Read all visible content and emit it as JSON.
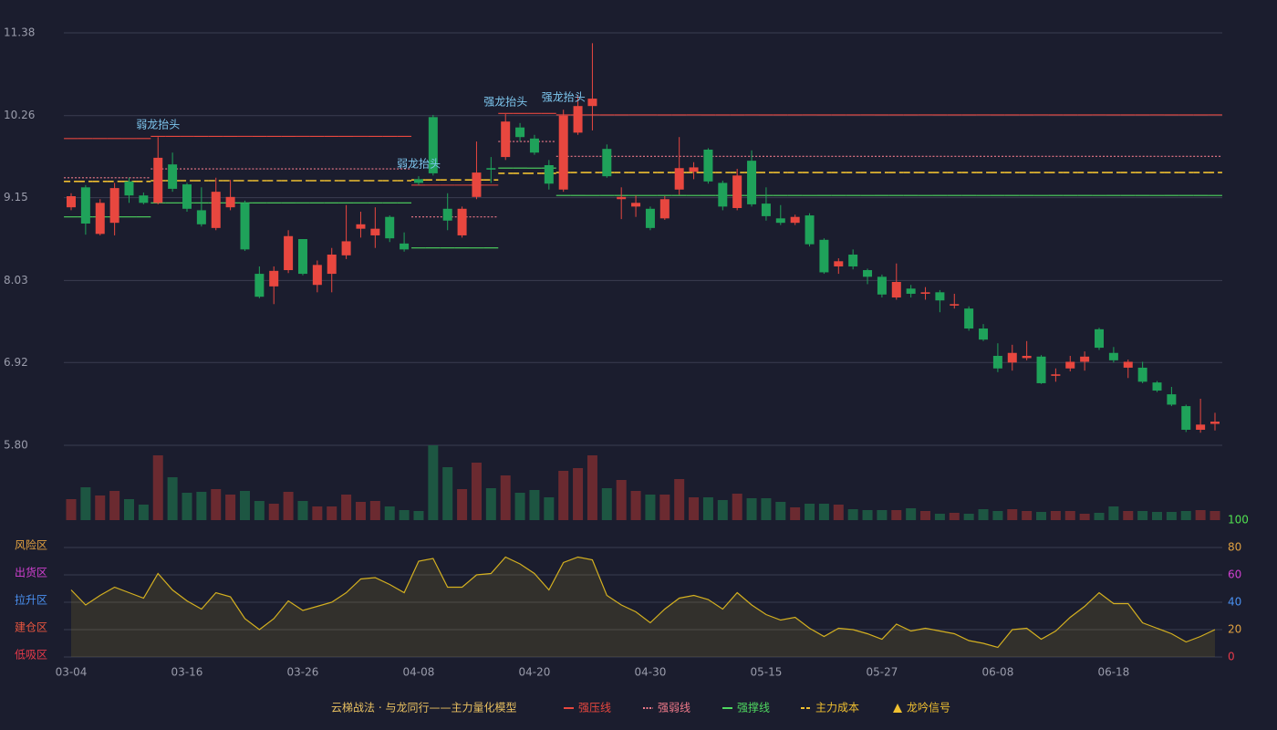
{
  "chart_data": {
    "type": "candlestick",
    "categories": [
      "03-04",
      null,
      null,
      null,
      null,
      null,
      null,
      null,
      "03-16",
      null,
      null,
      null,
      null,
      null,
      null,
      null,
      "03-26",
      null,
      null,
      null,
      null,
      null,
      null,
      null,
      "04-08",
      null,
      null,
      null,
      null,
      null,
      null,
      null,
      "04-20",
      null,
      null,
      null,
      null,
      null,
      null,
      null,
      "04-30",
      null,
      null,
      null,
      null,
      null,
      null,
      null,
      "05-15",
      null,
      null,
      null,
      null,
      null,
      null,
      null,
      "05-27",
      null,
      null,
      null,
      null,
      null,
      null,
      null,
      "06-08",
      null,
      null,
      null,
      null,
      null,
      null,
      null,
      "06-18",
      null,
      null,
      null,
      null,
      null,
      null,
      null
    ],
    "open": [
      9.02,
      9.29,
      8.66,
      8.81,
      9.37,
      9.18,
      9.08,
      9.6,
      9.33,
      8.98,
      8.74,
      9.02,
      9.08,
      8.12,
      7.95,
      8.17,
      8.59,
      7.97,
      8.12,
      8.37,
      8.73,
      8.64,
      8.89,
      8.53,
      9.4,
      10.24,
      9.0,
      8.64,
      9.16,
      9.55,
      9.7,
      10.1,
      9.95,
      9.59,
      9.26,
      10.03,
      10.39,
      9.81,
      9.13,
      9.03,
      9.0,
      8.87,
      9.26,
      9.5,
      9.8,
      9.35,
      9.01,
      9.65,
      9.07,
      8.87,
      8.81,
      8.91,
      8.58,
      8.22,
      8.38,
      8.17,
      8.08,
      7.8,
      7.92,
      7.85,
      7.87,
      7.69,
      7.65,
      7.38,
      7.01,
      6.92,
      6.98,
      7.0,
      6.74,
      6.84,
      6.93,
      7.37,
      7.05,
      6.85,
      6.85,
      6.65,
      6.49,
      6.33,
      6.01,
      6.09
    ],
    "close": [
      9.17,
      8.8,
      9.08,
      9.28,
      9.18,
      9.08,
      9.69,
      9.27,
      9.0,
      8.79,
      9.23,
      9.16,
      8.45,
      7.81,
      8.16,
      8.63,
      8.12,
      8.24,
      8.38,
      8.56,
      8.79,
      8.73,
      8.6,
      8.45,
      9.35,
      9.48,
      8.84,
      9.0,
      9.49,
      9.53,
      10.18,
      9.97,
      9.76,
      9.34,
      10.26,
      10.39,
      10.49,
      9.44,
      9.16,
      9.08,
      8.74,
      9.13,
      9.55,
      9.56,
      9.37,
      9.03,
      9.45,
      9.06,
      8.9,
      8.81,
      8.89,
      8.52,
      8.14,
      8.29,
      8.22,
      8.08,
      7.84,
      8.01,
      7.85,
      7.87,
      7.76,
      7.71,
      7.38,
      7.23,
      6.84,
      7.05,
      7.01,
      6.64,
      6.76,
      6.93,
      7.0,
      7.12,
      6.95,
      6.93,
      6.66,
      6.54,
      6.35,
      6.01,
      6.08,
      6.12
    ],
    "high": [
      9.21,
      9.32,
      9.13,
      9.35,
      9.42,
      9.22,
      9.97,
      9.76,
      9.35,
      9.29,
      9.42,
      9.39,
      9.11,
      8.22,
      8.22,
      8.71,
      8.59,
      8.3,
      8.47,
      9.05,
      8.96,
      9.02,
      8.91,
      8.68,
      9.44,
      10.27,
      9.21,
      9.03,
      9.91,
      9.7,
      10.28,
      10.16,
      10.0,
      9.66,
      10.34,
      10.54,
      11.24,
      9.87,
      9.29,
      9.18,
      9.03,
      9.17,
      9.97,
      9.63,
      9.82,
      9.38,
      9.54,
      9.79,
      9.29,
      9.05,
      8.92,
      8.94,
      8.6,
      8.33,
      8.45,
      8.19,
      8.11,
      8.26,
      7.97,
      7.94,
      7.9,
      7.85,
      7.68,
      7.44,
      7.18,
      7.16,
      7.21,
      7.02,
      6.84,
      7.01,
      7.07,
      7.39,
      7.13,
      6.96,
      6.93,
      6.67,
      6.59,
      6.35,
      6.43,
      6.24
    ],
    "low": [
      8.98,
      8.65,
      8.64,
      8.64,
      9.08,
      9.06,
      9.06,
      9.23,
      8.96,
      8.76,
      8.71,
      8.98,
      8.43,
      7.79,
      7.71,
      8.13,
      8.1,
      7.87,
      7.87,
      8.32,
      8.61,
      8.47,
      8.55,
      8.42,
      9.32,
      9.45,
      8.71,
      8.61,
      9.13,
      9.35,
      9.66,
      9.91,
      9.73,
      9.26,
      9.23,
      10.0,
      10.06,
      9.42,
      8.86,
      8.89,
      8.71,
      8.85,
      9.19,
      9.4,
      9.34,
      8.98,
      8.98,
      9.03,
      8.84,
      8.78,
      8.78,
      8.49,
      8.12,
      8.12,
      8.18,
      7.98,
      7.8,
      7.77,
      7.8,
      7.77,
      7.6,
      7.65,
      7.35,
      7.21,
      6.79,
      6.81,
      6.95,
      6.63,
      6.66,
      6.8,
      6.81,
      7.09,
      6.92,
      6.71,
      6.64,
      6.52,
      6.33,
      5.98,
      5.97,
      6.0
    ],
    "up_color": "#e8473f",
    "down_color": "#1fa25a",
    "vol_up_color": "#6b2a30",
    "vol_down_color": "#1d5642",
    "ylim": [
      5.8,
      11.38
    ],
    "yticks": [
      {
        "value": 5.8,
        "label": "5.80"
      },
      6.92,
      8.03,
      9.15,
      10.26,
      11.38
    ],
    "grid": true,
    "series": [
      {
        "name": "强压线",
        "color": "#e8473f",
        "style": "solid",
        "values": [
          9.95,
          9.95,
          9.95,
          9.95,
          9.95,
          9.95,
          9.98,
          9.98,
          9.98,
          9.98,
          9.98,
          9.98,
          9.98,
          9.98,
          9.98,
          9.98,
          9.98,
          9.98,
          9.98,
          9.98,
          9.98,
          9.98,
          9.98,
          9.98,
          9.32,
          9.32,
          9.32,
          9.32,
          9.32,
          9.32,
          10.29,
          10.29,
          10.29,
          10.29,
          10.27,
          10.27,
          10.27,
          10.27,
          10.27,
          10.27,
          10.27,
          10.27,
          10.27,
          10.27,
          10.27,
          10.27,
          10.27,
          10.27,
          10.27,
          10.27,
          10.27,
          10.27,
          10.27,
          10.27,
          10.27,
          10.27,
          10.27,
          10.27,
          10.27,
          10.27,
          10.27,
          10.27,
          10.27,
          10.27,
          10.27,
          10.27,
          10.27,
          10.27,
          10.27,
          10.27,
          10.27,
          10.27,
          10.27,
          10.27,
          10.27,
          10.27,
          10.27,
          10.27,
          10.27,
          10.27
        ]
      },
      {
        "name": "强弱线",
        "color": "#f07a8a",
        "style": "dotted",
        "values": [
          9.42,
          9.42,
          9.42,
          9.42,
          9.42,
          9.42,
          9.54,
          9.54,
          9.54,
          9.54,
          9.54,
          9.54,
          9.54,
          9.54,
          9.54,
          9.54,
          9.54,
          9.54,
          9.54,
          9.54,
          9.54,
          9.54,
          9.54,
          9.54,
          8.89,
          8.89,
          8.89,
          8.89,
          8.89,
          8.89,
          9.91,
          9.91,
          9.91,
          9.91,
          9.71,
          9.71,
          9.71,
          9.71,
          9.71,
          9.71,
          9.71,
          9.71,
          9.71,
          9.71,
          9.71,
          9.71,
          9.71,
          9.71,
          9.71,
          9.71,
          9.71,
          9.71,
          9.71,
          9.71,
          9.71,
          9.71,
          9.71,
          9.71,
          9.71,
          9.71,
          9.71,
          9.71,
          9.71,
          9.71,
          9.71,
          9.71,
          9.71,
          9.71,
          9.71,
          9.71,
          9.71,
          9.71,
          9.71,
          9.71,
          9.71,
          9.71,
          9.71,
          9.71,
          9.71,
          9.71
        ]
      },
      {
        "name": "强撑线",
        "color": "#4fd860",
        "style": "solid",
        "values": [
          8.89,
          8.89,
          8.89,
          8.89,
          8.89,
          8.89,
          9.08,
          9.08,
          9.08,
          9.08,
          9.08,
          9.08,
          9.08,
          9.08,
          9.08,
          9.08,
          9.08,
          9.08,
          9.08,
          9.08,
          9.08,
          9.08,
          9.08,
          9.08,
          8.47,
          8.47,
          8.47,
          8.47,
          8.47,
          8.47,
          9.55,
          9.55,
          9.55,
          9.55,
          9.18,
          9.18,
          9.18,
          9.18,
          9.18,
          9.18,
          9.18,
          9.18,
          9.18,
          9.18,
          9.18,
          9.18,
          9.18,
          9.18,
          9.18,
          9.18,
          9.18,
          9.18,
          9.18,
          9.18,
          9.18,
          9.18,
          9.18,
          9.18,
          9.18,
          9.18,
          9.18,
          9.18,
          9.18,
          9.18,
          9.18,
          9.18,
          9.18,
          9.18,
          9.18,
          9.18,
          9.18,
          9.18,
          9.18,
          9.18,
          9.18,
          9.18,
          9.18,
          9.18,
          9.18,
          9.18
        ]
      },
      {
        "name": "主力成本",
        "color": "#f0c030",
        "style": "dashed",
        "values": [
          9.37,
          9.37,
          9.37,
          9.37,
          9.37,
          9.37,
          9.38,
          9.38,
          9.38,
          9.38,
          9.38,
          9.38,
          9.38,
          9.38,
          9.38,
          9.38,
          9.38,
          9.38,
          9.38,
          9.38,
          9.38,
          9.38,
          9.38,
          9.38,
          9.39,
          9.39,
          9.39,
          9.39,
          9.39,
          9.39,
          9.48,
          9.48,
          9.48,
          9.48,
          9.49,
          9.49,
          9.49,
          9.49,
          9.49,
          9.49,
          9.49,
          9.49,
          9.49,
          9.49,
          9.49,
          9.49,
          9.49,
          9.49,
          9.49,
          9.49,
          9.49,
          9.49,
          9.49,
          9.49,
          9.49,
          9.49,
          9.49,
          9.49,
          9.49,
          9.49,
          9.49,
          9.49,
          9.49,
          9.49,
          9.49,
          9.49,
          9.49,
          9.49,
          9.49,
          9.49,
          9.49,
          9.49,
          9.49,
          9.49,
          9.49,
          9.49,
          9.49,
          9.49,
          9.49,
          9.49
        ]
      }
    ],
    "signals": [
      null,
      null,
      null,
      null,
      null,
      null,
      "弱龙抬头",
      null,
      null,
      null,
      null,
      null,
      null,
      null,
      null,
      null,
      null,
      null,
      null,
      null,
      null,
      null,
      null,
      null,
      "弱龙抬头",
      null,
      null,
      null,
      null,
      null,
      "强龙抬头",
      null,
      null,
      null,
      "强龙抬头",
      null,
      null,
      null,
      null,
      null,
      null,
      null,
      null,
      null,
      null,
      null,
      null,
      null,
      null,
      null,
      null,
      null,
      null,
      null,
      null,
      null,
      null,
      null,
      null,
      null,
      null,
      null,
      null,
      null,
      null,
      null,
      null,
      null,
      null,
      null,
      null,
      null,
      null,
      null,
      null,
      null,
      null,
      null,
      null,
      null
    ],
    "signal_color": "#7ec8f0",
    "signal_legend": {
      "name": "龙吟信号",
      "color": "#f0c030"
    },
    "volume": [
      23,
      36,
      27,
      32,
      23,
      17,
      71,
      47,
      30,
      31,
      34,
      28,
      32,
      21,
      18,
      31,
      21,
      15,
      15,
      28,
      20,
      21,
      15,
      11,
      10,
      82,
      58,
      34,
      63,
      35,
      49,
      30,
      33,
      25,
      54,
      57,
      71,
      35,
      44,
      32,
      28,
      28,
      45,
      25,
      25,
      22,
      29,
      24,
      24,
      20,
      14,
      18,
      18,
      17,
      12,
      11,
      11,
      11,
      13,
      10,
      7,
      8,
      7,
      12,
      10,
      12,
      10,
      9,
      10,
      10,
      7,
      8,
      15,
      10,
      10,
      9,
      9,
      10,
      11,
      10
    ],
    "oscillator": {
      "values": [
        49,
        38,
        45,
        51,
        47,
        43,
        61,
        49,
        41,
        35,
        47,
        44,
        28,
        20,
        28,
        41,
        34,
        37,
        40,
        47,
        57,
        58,
        53,
        47,
        70,
        72,
        51,
        51,
        60,
        61,
        73,
        68,
        61,
        49,
        69,
        73,
        71,
        45,
        38,
        33,
        25,
        35,
        43,
        45,
        42,
        35,
        47,
        38,
        31,
        27,
        29,
        21,
        15,
        21,
        20,
        17,
        13,
        24,
        19,
        21,
        19,
        17,
        12,
        10,
        7,
        20,
        21,
        13,
        19,
        29,
        37,
        47,
        39,
        39,
        25,
        21,
        17,
        11,
        15,
        20
      ],
      "color": "#d4b020",
      "ylim": [
        0,
        100
      ],
      "yticks": [
        0,
        20,
        40,
        60,
        80,
        100
      ],
      "tick_colors": [
        "#e83a4a",
        "#e0a040",
        "#4a90f0",
        "#d040d0",
        "#e0a040",
        "#50e050"
      ],
      "zones": [
        {
          "label": "低吸区",
          "value": 0,
          "color": "#e83a4a"
        },
        {
          "label": "建仓区",
          "value": 20,
          "color": "#e8553f"
        },
        {
          "label": "拉升区",
          "value": 40,
          "color": "#4a90f0"
        },
        {
          "label": "出货区",
          "value": 60,
          "color": "#d040d0"
        },
        {
          "label": "风险区",
          "value": 80,
          "color": "#e0a040"
        }
      ]
    },
    "legend_title": "云梯战法 · 与龙同行——主力量化模型"
  }
}
